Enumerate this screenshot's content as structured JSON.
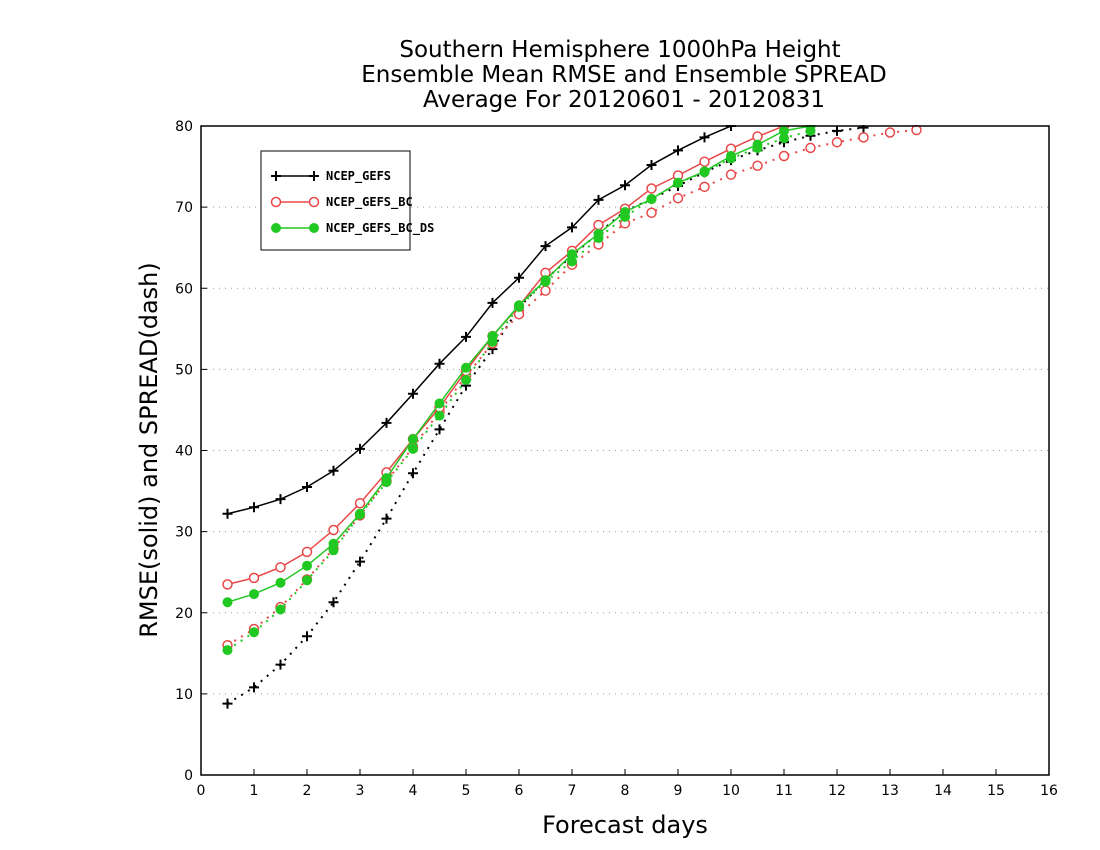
{
  "chart_data": {
    "type": "line",
    "title_lines": [
      "Southern Hemisphere 1000hPa Height",
      "Ensemble Mean RMSE and Ensemble SPREAD",
      "Average For 20120601 - 20120831"
    ],
    "xlabel": "Forecast days",
    "ylabel": "RMSE(solid) and SPREAD(dash)",
    "xlim": [
      0,
      16
    ],
    "ylim": [
      0,
      80
    ],
    "xticks": [
      0,
      1,
      2,
      3,
      4,
      5,
      6,
      7,
      8,
      9,
      10,
      11,
      12,
      13,
      14,
      15,
      16
    ],
    "yticks": [
      0,
      10,
      20,
      30,
      40,
      50,
      60,
      70,
      80
    ],
    "grid": "horizontal-dotted",
    "legend_position": "top-left",
    "series": [
      {
        "name": "NCEP_GEFS",
        "color": "#000000",
        "marker": "plus",
        "rmse": {
          "x": [
            0.5,
            1,
            1.5,
            2,
            2.5,
            3,
            3.5,
            4,
            4.5,
            5,
            5.5,
            6,
            6.5,
            7,
            7.5,
            8,
            8.5,
            9,
            9.5,
            10
          ],
          "y": [
            32.2,
            33.0,
            34.0,
            35.5,
            37.5,
            40.2,
            43.4,
            47.0,
            50.7,
            54.0,
            58.2,
            61.3,
            65.2,
            67.5,
            70.9,
            72.7,
            75.2,
            77.0,
            78.6,
            80.0
          ]
        },
        "spread": {
          "x": [
            0.5,
            1,
            1.5,
            2,
            2.5,
            3,
            3.5,
            4,
            4.5,
            5,
            5.5,
            6,
            6.5,
            7,
            7.5,
            8,
            8.5,
            9,
            9.5,
            10,
            10.5,
            11,
            11.5,
            12,
            12.5
          ],
          "y": [
            8.8,
            10.8,
            13.6,
            17.1,
            21.3,
            26.3,
            31.6,
            37.2,
            42.6,
            48.0,
            52.5,
            57.6,
            61.1,
            64.0,
            66.8,
            69.5,
            71.0,
            72.6,
            74.3,
            75.8,
            77.0,
            78.0,
            78.8,
            79.4,
            79.8
          ]
        }
      },
      {
        "name": "NCEP_GEFS_BC",
        "color": "#e84848",
        "marker": "circle-open",
        "rmse": {
          "x": [
            0.5,
            1,
            1.5,
            2,
            2.5,
            3,
            3.5,
            4,
            4.5,
            5,
            5.5,
            6,
            6.5,
            7,
            7.5,
            8,
            8.5,
            9,
            9.5,
            10,
            10.5,
            11
          ],
          "y": [
            23.5,
            24.3,
            25.6,
            27.5,
            30.2,
            33.5,
            37.3,
            41.4,
            45.3,
            49.8,
            54.1,
            57.8,
            61.9,
            64.6,
            67.8,
            69.8,
            72.3,
            73.9,
            75.6,
            77.2,
            78.7,
            80.0
          ]
        },
        "spread": {
          "x": [
            0.5,
            1,
            1.5,
            2,
            2.5,
            3,
            3.5,
            4,
            4.5,
            5,
            5.5,
            6,
            6.5,
            7,
            7.5,
            8,
            8.5,
            9,
            9.5,
            10,
            10.5,
            11,
            11.5,
            12,
            12.5,
            13,
            13.5
          ],
          "y": [
            16.0,
            18.0,
            20.7,
            24.1,
            27.9,
            32.0,
            36.2,
            40.4,
            44.8,
            49.2,
            53.2,
            56.8,
            59.7,
            62.9,
            65.4,
            68.0,
            69.3,
            71.1,
            72.5,
            74.0,
            75.1,
            76.3,
            77.3,
            78.0,
            78.6,
            79.2,
            79.5
          ]
        }
      },
      {
        "name": "NCEP_GEFS_BC_DS",
        "color": "#22c822",
        "marker": "circle-filled",
        "rmse": {
          "x": [
            0.5,
            1,
            1.5,
            2,
            2.5,
            3,
            3.5,
            4,
            4.5,
            5,
            5.5,
            6,
            6.5,
            7,
            7.5,
            8,
            8.5,
            9,
            9.5,
            10,
            10.5,
            11,
            11.5
          ],
          "y": [
            21.3,
            22.3,
            23.7,
            25.8,
            28.5,
            32.2,
            36.6,
            41.4,
            45.8,
            50.2,
            54.1,
            57.9,
            61.0,
            64.2,
            66.7,
            69.4,
            71.0,
            73.0,
            74.4,
            76.3,
            77.7,
            79.4,
            80.0
          ]
        },
        "spread": {
          "x": [
            0.5,
            1,
            1.5,
            2,
            2.5,
            3,
            3.5,
            4,
            4.5,
            5,
            5.5,
            6,
            6.5,
            7,
            7.5,
            8,
            8.5,
            9,
            9.5,
            10,
            10.5,
            11,
            11.5
          ],
          "y": [
            15.4,
            17.6,
            20.4,
            24.0,
            27.7,
            32.1,
            36.1,
            40.2,
            44.3,
            48.7,
            53.4,
            57.7,
            60.8,
            63.3,
            66.2,
            68.8,
            71.0,
            73.0,
            74.3,
            76.0,
            77.3,
            78.5,
            79.4
          ]
        }
      }
    ]
  }
}
